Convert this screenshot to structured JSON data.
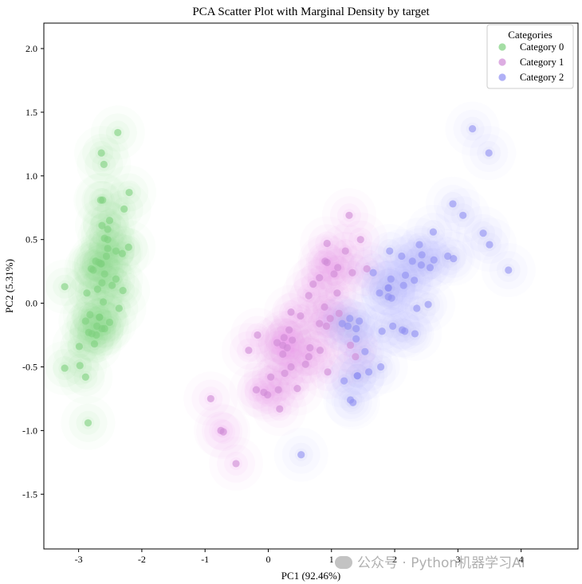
{
  "chart_data": {
    "type": "scatter",
    "title": "PCA Scatter Plot with Marginal Density by target",
    "xlabel": "PC1 (92.46%)",
    "ylabel": "PC2 (5.31%)",
    "xlim": [
      -3.55,
      4.9
    ],
    "ylim": [
      -1.93,
      2.2
    ],
    "x_ticks": [
      -3,
      -2,
      -1,
      0,
      1,
      2,
      3,
      4
    ],
    "y_ticks": [
      -1.5,
      -1.0,
      -0.5,
      0.0,
      0.5,
      1.0,
      1.5,
      2.0
    ],
    "x_tick_labels": [
      "-3",
      "-2",
      "-1",
      "0",
      "1",
      "2",
      "3",
      "4"
    ],
    "y_tick_labels": [
      "-1.5",
      "-1.0",
      "-0.5",
      "0.0",
      "0.5",
      "1.0",
      "1.5",
      "2.0"
    ],
    "grid": false,
    "legend": {
      "title": "Categories",
      "placement": "top-right"
    },
    "series": [
      {
        "name": "Category 0",
        "color": "#7ed07e",
        "points": [
          [
            -2.68,
            0.32
          ],
          [
            -2.71,
            -0.18
          ],
          [
            -2.89,
            -0.14
          ],
          [
            -2.75,
            -0.32
          ],
          [
            -2.73,
            0.33
          ],
          [
            -2.28,
            0.74
          ],
          [
            -2.82,
            -0.09
          ],
          [
            -2.63,
            0.16
          ],
          [
            -2.89,
            -0.58
          ],
          [
            -2.67,
            -0.11
          ],
          [
            -2.51,
            0.65
          ],
          [
            -2.61,
            0.01
          ],
          [
            -2.79,
            -0.24
          ],
          [
            -3.22,
            -0.51
          ],
          [
            -2.64,
            1.18
          ],
          [
            -2.38,
            1.34
          ],
          [
            -2.62,
            0.81
          ],
          [
            -2.65,
            0.31
          ],
          [
            -2.2,
            0.87
          ],
          [
            -2.59,
            0.51
          ],
          [
            -2.31,
            0.39
          ],
          [
            -2.54,
            0.43
          ],
          [
            -3.22,
            0.13
          ],
          [
            -2.3,
            0.1
          ],
          [
            -2.36,
            -0.04
          ],
          [
            -2.51,
            -0.15
          ],
          [
            -2.47,
            0.14
          ],
          [
            -2.56,
            0.37
          ],
          [
            -2.64,
            0.31
          ],
          [
            -2.63,
            -0.2
          ],
          [
            -2.59,
            -0.2
          ],
          [
            -2.41,
            0.41
          ],
          [
            -2.65,
            0.81
          ],
          [
            -2.6,
            1.09
          ],
          [
            -2.67,
            -0.11
          ],
          [
            -2.87,
            0.08
          ],
          [
            -2.63,
            0.61
          ],
          [
            -2.8,
            0.27
          ],
          [
            -2.98,
            -0.49
          ],
          [
            -2.59,
            0.23
          ],
          [
            -2.77,
            0.26
          ],
          [
            -2.85,
            -0.94
          ],
          [
            -2.99,
            -0.34
          ],
          [
            -2.41,
            0.19
          ],
          [
            -2.21,
            0.44
          ],
          [
            -2.72,
            -0.25
          ],
          [
            -2.54,
            0.5
          ],
          [
            -2.84,
            -0.23
          ],
          [
            -2.54,
            0.58
          ],
          [
            -2.7,
            0.11
          ]
        ]
      },
      {
        "name": "Category 1",
        "color": "#cf8ad6",
        "points": [
          [
            1.28,
            0.69
          ],
          [
            0.93,
            0.32
          ],
          [
            1.46,
            0.5
          ],
          [
            0.18,
            -0.83
          ],
          [
            1.09,
            0.08
          ],
          [
            0.64,
            -0.42
          ],
          [
            1.1,
            0.28
          ],
          [
            -0.75,
            -1.0
          ],
          [
            1.04,
            0.23
          ],
          [
            -0.01,
            -0.72
          ],
          [
            -0.51,
            -1.26
          ],
          [
            0.51,
            -0.1
          ],
          [
            0.26,
            -0.55
          ],
          [
            0.98,
            -0.12
          ],
          [
            -0.17,
            -0.25
          ],
          [
            0.93,
            0.47
          ],
          [
            0.66,
            -0.35
          ],
          [
            0.23,
            -0.33
          ],
          [
            0.94,
            -0.54
          ],
          [
            0.04,
            -0.58
          ],
          [
            1.12,
            -0.08
          ],
          [
            0.36,
            -0.07
          ],
          [
            1.3,
            -0.33
          ],
          [
            0.92,
            -0.18
          ],
          [
            0.71,
            0.15
          ],
          [
            0.9,
            0.33
          ],
          [
            1.33,
            0.24
          ],
          [
            1.56,
            0.27
          ],
          [
            0.81,
            -0.16
          ],
          [
            -0.31,
            -0.37
          ],
          [
            -0.07,
            -0.7
          ],
          [
            -0.19,
            -0.68
          ],
          [
            0.14,
            -0.31
          ],
          [
            1.38,
            -0.42
          ],
          [
            0.59,
            -0.48
          ],
          [
            0.81,
            0.2
          ],
          [
            1.22,
            0.41
          ],
          [
            0.82,
            -0.37
          ],
          [
            0.25,
            -0.27
          ],
          [
            0.16,
            -0.68
          ],
          [
            0.46,
            -0.67
          ],
          [
            0.89,
            -0.03
          ],
          [
            0.23,
            -0.4
          ],
          [
            -0.71,
            -1.01
          ],
          [
            0.36,
            -0.5
          ],
          [
            0.33,
            -0.21
          ],
          [
            0.38,
            -0.29
          ],
          [
            0.64,
            0.06
          ],
          [
            -0.91,
            -0.75
          ],
          [
            0.3,
            -0.35
          ]
        ]
      },
      {
        "name": "Category 2",
        "color": "#8f8ff2",
        "points": [
          [
            2.53,
            -0.01
          ],
          [
            1.41,
            -0.57
          ],
          [
            2.62,
            0.34
          ],
          [
            1.97,
            -0.18
          ],
          [
            2.35,
            -0.04
          ],
          [
            3.4,
            0.55
          ],
          [
            0.52,
            -1.19
          ],
          [
            2.93,
            0.35
          ],
          [
            2.32,
            -0.24
          ],
          [
            2.92,
            0.78
          ],
          [
            1.66,
            0.24
          ],
          [
            1.8,
            -0.22
          ],
          [
            2.17,
            0.22
          ],
          [
            1.34,
            -0.78
          ],
          [
            1.59,
            -0.54
          ],
          [
            1.9,
            0.12
          ],
          [
            1.95,
            0.04
          ],
          [
            3.49,
            1.18
          ],
          [
            3.8,
            0.26
          ],
          [
            1.3,
            -0.76
          ],
          [
            2.43,
            0.38
          ],
          [
            1.2,
            -0.61
          ],
          [
            3.5,
            0.46
          ],
          [
            1.39,
            -0.2
          ],
          [
            2.28,
            0.33
          ],
          [
            2.61,
            0.56
          ],
          [
            1.26,
            -0.18
          ],
          [
            1.29,
            -0.12
          ],
          [
            2.12,
            -0.21
          ],
          [
            2.39,
            0.46
          ],
          [
            2.84,
            0.37
          ],
          [
            3.23,
            1.37
          ],
          [
            2.16,
            -0.22
          ],
          [
            1.44,
            -0.14
          ],
          [
            1.78,
            -0.5
          ],
          [
            3.08,
            0.69
          ],
          [
            2.14,
            0.14
          ],
          [
            1.9,
            0.05
          ],
          [
            1.17,
            -0.16
          ],
          [
            2.11,
            0.37
          ],
          [
            2.31,
            0.18
          ],
          [
            1.92,
            0.41
          ],
          [
            1.41,
            -0.57
          ],
          [
            2.56,
            0.28
          ],
          [
            2.42,
            0.3
          ],
          [
            1.94,
            0.19
          ],
          [
            1.53,
            -0.38
          ],
          [
            1.76,
            0.08
          ],
          [
            1.9,
            0.12
          ],
          [
            1.39,
            -0.28
          ]
        ]
      }
    ]
  },
  "watermark": "公众号 · Python机器学习AI"
}
